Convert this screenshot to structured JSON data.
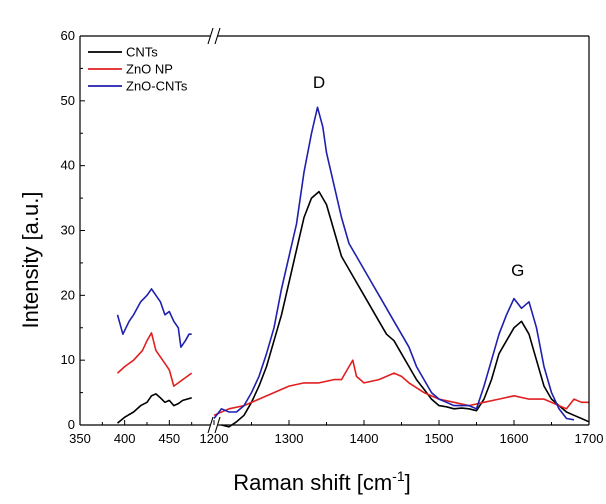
{
  "chart_data": {
    "type": "line",
    "title": "",
    "xlabel": "Raman shift [cm",
    "xlabel_sup": "-1",
    "xlabel_suffix": "]",
    "ylabel": "Intensity [a.u.]",
    "ylim": [
      0,
      60
    ],
    "yticks": [
      "0",
      "10",
      "20",
      "30",
      "40",
      "50",
      "60"
    ],
    "yticks_values": [
      0,
      10,
      20,
      30,
      40,
      50,
      60
    ],
    "broken_x_axis": true,
    "x_segments": [
      {
        "range": [
          350,
          500
        ],
        "ticks": [
          350,
          400,
          450
        ]
      },
      {
        "range": [
          1200,
          1700
        ],
        "ticks": [
          1200,
          1300,
          1400,
          1500,
          1600,
          1700
        ]
      }
    ],
    "xtick_labels": [
      "350",
      "400",
      "450",
      "1200",
      "1300",
      "1400",
      "1500",
      "1600",
      "1700"
    ],
    "annotations": [
      {
        "text": "D",
        "x": 1340,
        "y": 52
      },
      {
        "text": "G",
        "x": 1605,
        "y": 23
      }
    ],
    "legend_position": "top-left",
    "legend": [
      {
        "name": "CNTs",
        "color": "#000000"
      },
      {
        "name": "ZnO NP",
        "color": "#e02020"
      },
      {
        "name": "ZnO-CNTs",
        "color": "#1f1fb0"
      }
    ],
    "series": [
      {
        "name": "CNTs",
        "color": "#000000",
        "segments": [
          [
            [
              392,
              0.3
            ],
            [
              400,
              1.2
            ],
            [
              410,
              2.0
            ],
            [
              418,
              3.0
            ],
            [
              425,
              3.5
            ],
            [
              430,
              4.5
            ],
            [
              435,
              4.8
            ],
            [
              440,
              4.2
            ],
            [
              445,
              3.5
            ],
            [
              450,
              3.8
            ],
            [
              455,
              3.0
            ],
            [
              460,
              3.3
            ],
            [
              465,
              3.8
            ],
            [
              470,
              4.0
            ],
            [
              475,
              4.2
            ]
          ],
          [
            [
              1210,
              0
            ],
            [
              1220,
              -0.3
            ],
            [
              1230,
              0.5
            ],
            [
              1240,
              1.5
            ],
            [
              1250,
              3.5
            ],
            [
              1260,
              6
            ],
            [
              1270,
              9
            ],
            [
              1280,
              13
            ],
            [
              1290,
              17
            ],
            [
              1300,
              22
            ],
            [
              1310,
              27
            ],
            [
              1320,
              32
            ],
            [
              1330,
              35
            ],
            [
              1340,
              36
            ],
            [
              1350,
              34
            ],
            [
              1360,
              30
            ],
            [
              1370,
              26
            ],
            [
              1380,
              24
            ],
            [
              1390,
              22
            ],
            [
              1400,
              20
            ],
            [
              1410,
              18
            ],
            [
              1420,
              16
            ],
            [
              1430,
              14
            ],
            [
              1440,
              13
            ],
            [
              1450,
              11
            ],
            [
              1460,
              9
            ],
            [
              1470,
              7
            ],
            [
              1480,
              5.5
            ],
            [
              1490,
              4
            ],
            [
              1500,
              3
            ],
            [
              1510,
              2.8
            ],
            [
              1520,
              2.5
            ],
            [
              1530,
              2.6
            ],
            [
              1540,
              2.5
            ],
            [
              1550,
              2.2
            ],
            [
              1560,
              4
            ],
            [
              1570,
              7
            ],
            [
              1580,
              11
            ],
            [
              1590,
              13
            ],
            [
              1600,
              15
            ],
            [
              1610,
              16
            ],
            [
              1620,
              14
            ],
            [
              1630,
              10
            ],
            [
              1640,
              6
            ],
            [
              1650,
              4
            ],
            [
              1660,
              3
            ],
            [
              1670,
              2
            ],
            [
              1680,
              1.5
            ],
            [
              1690,
              1
            ],
            [
              1700,
              0.5
            ]
          ]
        ]
      },
      {
        "name": "ZnO NP",
        "color": "#e02020",
        "segments": [
          [
            [
              392,
              8
            ],
            [
              400,
              9
            ],
            [
              410,
              10
            ],
            [
              420,
              11.5
            ],
            [
              425,
              13
            ],
            [
              430,
              14.2
            ],
            [
              435,
              11.5
            ],
            [
              440,
              10.5
            ],
            [
              445,
              9.5
            ],
            [
              450,
              8.5
            ],
            [
              455,
              6
            ],
            [
              460,
              6.5
            ],
            [
              465,
              7
            ],
            [
              470,
              7.5
            ],
            [
              475,
              8
            ]
          ],
          [
            [
              1200,
              1.5
            ],
            [
              1220,
              2.5
            ],
            [
              1240,
              3
            ],
            [
              1260,
              4
            ],
            [
              1280,
              5
            ],
            [
              1300,
              6
            ],
            [
              1320,
              6.5
            ],
            [
              1340,
              6.5
            ],
            [
              1360,
              7
            ],
            [
              1370,
              7
            ],
            [
              1380,
              9
            ],
            [
              1385,
              10
            ],
            [
              1390,
              7.5
            ],
            [
              1400,
              6.5
            ],
            [
              1420,
              7
            ],
            [
              1440,
              8
            ],
            [
              1450,
              7.5
            ],
            [
              1460,
              6.5
            ],
            [
              1480,
              5
            ],
            [
              1500,
              4
            ],
            [
              1520,
              3.5
            ],
            [
              1540,
              3
            ],
            [
              1560,
              3.5
            ],
            [
              1580,
              4
            ],
            [
              1600,
              4.5
            ],
            [
              1620,
              4
            ],
            [
              1640,
              4
            ],
            [
              1660,
              3
            ],
            [
              1670,
              2.5
            ],
            [
              1680,
              4
            ],
            [
              1690,
              3.5
            ],
            [
              1700,
              3.5
            ]
          ]
        ]
      },
      {
        "name": "ZnO-CNTs",
        "color": "#1f1fb0",
        "segments": [
          [
            [
              392,
              17
            ],
            [
              398,
              14
            ],
            [
              405,
              16
            ],
            [
              410,
              17
            ],
            [
              418,
              19
            ],
            [
              425,
              20
            ],
            [
              430,
              21
            ],
            [
              435,
              20
            ],
            [
              440,
              19
            ],
            [
              445,
              17
            ],
            [
              450,
              17.5
            ],
            [
              455,
              16
            ],
            [
              460,
              15
            ],
            [
              463,
              12
            ],
            [
              468,
              13
            ],
            [
              472,
              14
            ],
            [
              475,
              14
            ]
          ],
          [
            [
              1200,
              1
            ],
            [
              1210,
              2.5
            ],
            [
              1220,
              2
            ],
            [
              1230,
              2
            ],
            [
              1240,
              3
            ],
            [
              1250,
              5
            ],
            [
              1260,
              7.5
            ],
            [
              1270,
              11
            ],
            [
              1280,
              15
            ],
            [
              1290,
              21
            ],
            [
              1300,
              26
            ],
            [
              1310,
              31
            ],
            [
              1320,
              39
            ],
            [
              1330,
              45
            ],
            [
              1338,
              49
            ],
            [
              1345,
              46
            ],
            [
              1350,
              42
            ],
            [
              1360,
              37
            ],
            [
              1370,
              32
            ],
            [
              1380,
              28
            ],
            [
              1390,
              26
            ],
            [
              1400,
              24
            ],
            [
              1410,
              22
            ],
            [
              1420,
              20
            ],
            [
              1430,
              18
            ],
            [
              1440,
              16
            ],
            [
              1450,
              14
            ],
            [
              1460,
              12
            ],
            [
              1470,
              9
            ],
            [
              1480,
              7
            ],
            [
              1490,
              5
            ],
            [
              1500,
              4
            ],
            [
              1510,
              3.5
            ],
            [
              1520,
              3
            ],
            [
              1530,
              3
            ],
            [
              1540,
              3
            ],
            [
              1550,
              2.5
            ],
            [
              1560,
              6
            ],
            [
              1570,
              10
            ],
            [
              1580,
              14
            ],
            [
              1590,
              17
            ],
            [
              1600,
              19.5
            ],
            [
              1610,
              18
            ],
            [
              1620,
              19
            ],
            [
              1630,
              15
            ],
            [
              1640,
              9
            ],
            [
              1650,
              5
            ],
            [
              1660,
              2.5
            ],
            [
              1670,
              1
            ],
            [
              1680,
              0.8
            ]
          ]
        ]
      }
    ]
  }
}
